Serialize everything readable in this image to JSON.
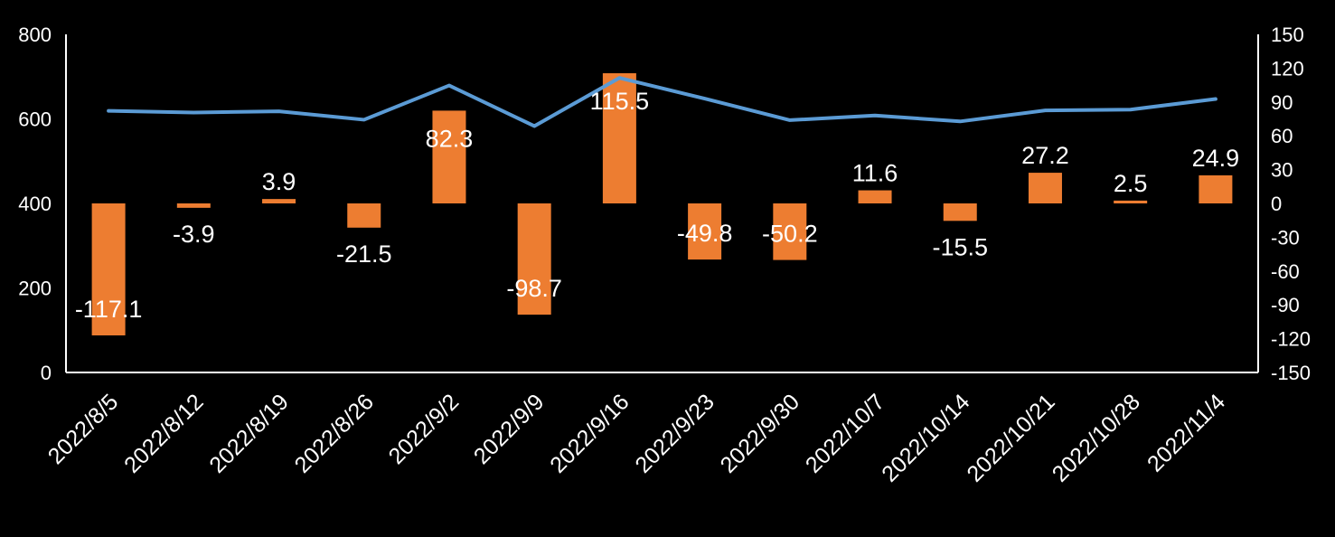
{
  "chart_data": {
    "type": "bar",
    "categories": [
      "2022/8/5",
      "2022/8/12",
      "2022/8/19",
      "2022/8/26",
      "2022/9/2",
      "2022/9/9",
      "2022/9/16",
      "2022/9/23",
      "2022/9/30",
      "2022/10/7",
      "2022/10/14",
      "2022/10/21",
      "2022/10/28",
      "2022/11/4"
    ],
    "series": [
      {
        "type": "line",
        "axis": "left",
        "color": "#5b9bd5",
        "values": [
          619,
          615,
          618,
          598,
          679,
          583,
          697,
          648,
          597,
          608,
          594,
          620,
          622,
          647
        ]
      },
      {
        "type": "bar",
        "axis": "right",
        "color": "#ed7d31",
        "values": [
          -117.1,
          -3.9,
          3.9,
          -21.5,
          82.3,
          -98.7,
          115.5,
          -49.8,
          -50.2,
          11.6,
          -15.5,
          27.2,
          2.5,
          24.9
        ],
        "labels": [
          "-117.1",
          "-3.9",
          "3.9",
          "-21.5",
          "82.3",
          "-98.7",
          "115.5",
          "-49.8",
          "-50.2",
          "11.6",
          "-15.5",
          "27.2",
          "2.5",
          "24.9"
        ]
      }
    ],
    "y_left": {
      "min": 0,
      "max": 800,
      "ticks": [
        "0",
        "200",
        "400",
        "600",
        "800"
      ]
    },
    "y_right": {
      "min": -150,
      "max": 150,
      "ticks": [
        "-150",
        "-120",
        "-90",
        "-60",
        "-30",
        "0",
        "30",
        "60",
        "90",
        "120",
        "150"
      ]
    },
    "grid": false,
    "legend": "none",
    "background": "#000000",
    "text_color": "#ffffff"
  }
}
